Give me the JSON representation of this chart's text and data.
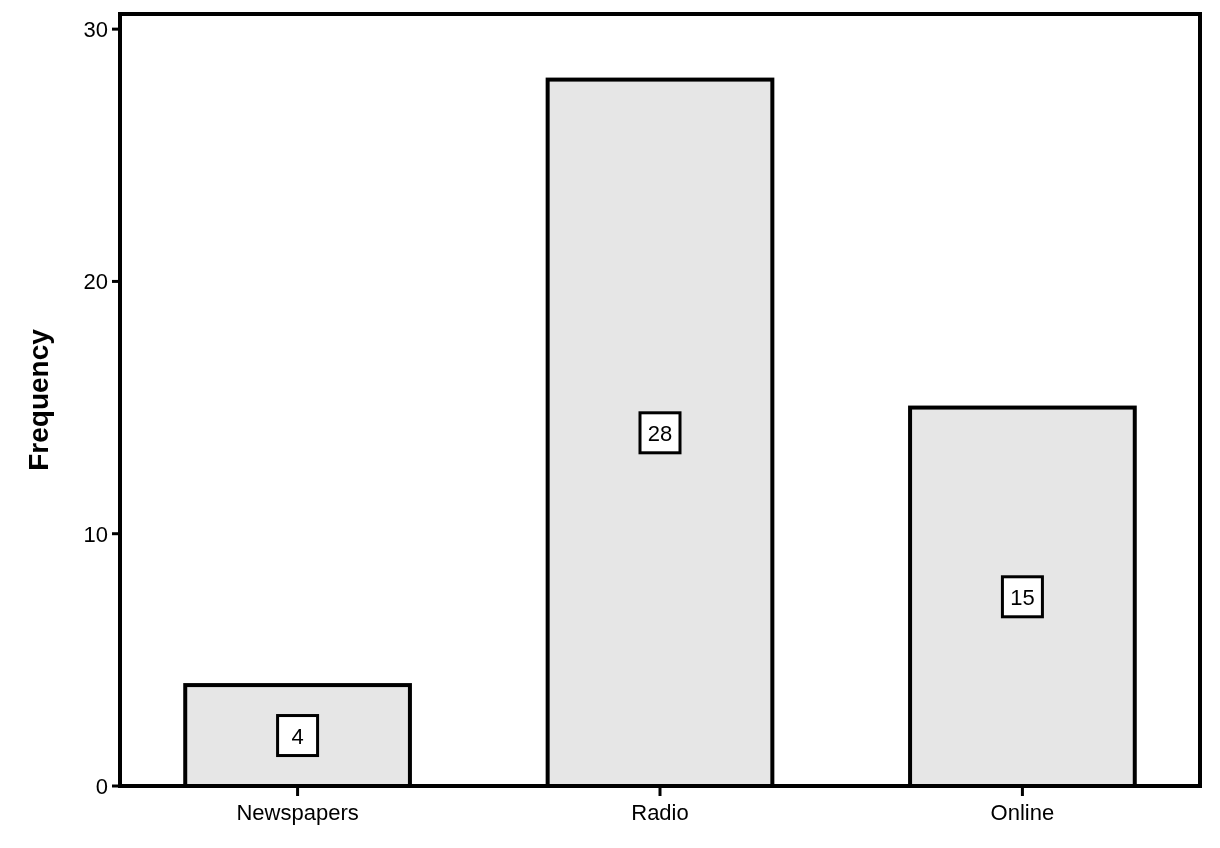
{
  "chart_data": {
    "type": "bar",
    "ylabel": "Frequency",
    "categories": [
      "Newspapers",
      "Radio",
      "Online"
    ],
    "values": [
      4,
      28,
      15
    ],
    "color": "#e6e6e6",
    "ylim": [
      0,
      30.6
    ],
    "yticks": [
      0,
      10,
      20,
      30
    ],
    "grid": false,
    "data_labels": true
  }
}
